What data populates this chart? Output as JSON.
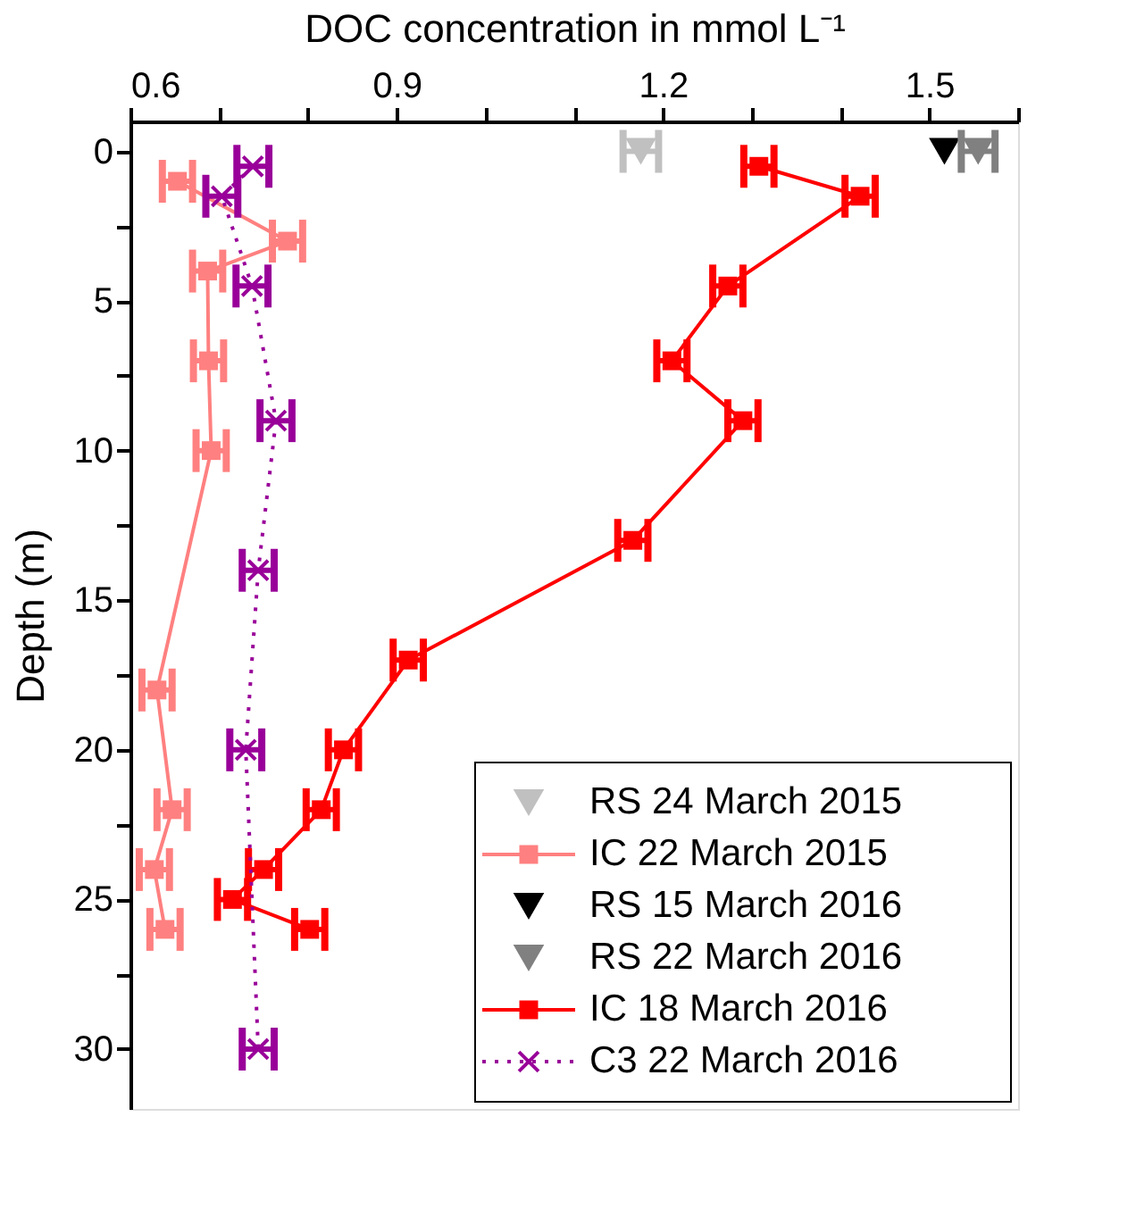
{
  "chart_data": {
    "type": "line",
    "xlabel": "DOC concentration in mmol L⁻¹",
    "ylabel": "Depth (m)",
    "xlim": [
      0.6,
      1.6
    ],
    "xticks": [
      0.6,
      {
        "value": 0.7,
        "label": null
      },
      {
        "value": 0.8,
        "label": null
      },
      0.9,
      {
        "value": 1.0,
        "label": null
      },
      {
        "value": 1.1,
        "label": null
      },
      1.2,
      {
        "value": 1.3,
        "label": null
      },
      {
        "value": 1.4,
        "label": null
      },
      1.5,
      {
        "value": 1.6,
        "label": null
      }
    ],
    "ylim": [
      32,
      -1
    ],
    "yticks": [
      0,
      {
        "value": 2.5,
        "label": null
      },
      5,
      {
        "value": 7.5,
        "label": null
      },
      10,
      {
        "value": 12.5,
        "label": null
      },
      15,
      {
        "value": 17.5,
        "label": null
      },
      20,
      {
        "value": 22.5,
        "label": null
      },
      25,
      {
        "value": 27.5,
        "label": null
      },
      30
    ],
    "grid": false,
    "legend": "bottom right",
    "series": [
      {
        "name": "RS 24 March 2015",
        "type": "scatter",
        "marker": "triangle",
        "color": "#c0c0c0",
        "x": [
          1.175
        ],
        "values": [
          0
        ],
        "xerrors": [
          0.02
        ]
      },
      {
        "name": "IC 22 March 2015",
        "marker": "square",
        "line_style": "solid",
        "color": "#ff8080",
        "x": [
          0.653,
          0.777,
          0.687,
          0.688,
          0.691,
          0.63,
          0.647,
          0.627,
          0.639
        ],
        "values": [
          1,
          3,
          4,
          7,
          10,
          18,
          22,
          24,
          26
        ],
        "xerrors": [
          0.017,
          0.017,
          0.017,
          0.017,
          0.017,
          0.017,
          0.017,
          0.017,
          0.017
        ]
      },
      {
        "name": "RS 15 March 2016",
        "type": "scatter",
        "marker": "triangle",
        "color": "#000000",
        "x": [
          1.517
        ],
        "values": [
          0
        ]
      },
      {
        "name": "RS 22 March 2016",
        "type": "scatter",
        "marker": "triangle",
        "color": "#808080",
        "x": [
          1.555
        ],
        "values": [
          0
        ],
        "xerrors": [
          0.019
        ]
      },
      {
        "name": "IC 18 March 2016",
        "marker": "square",
        "line_style": "solid",
        "color": "#ff0000",
        "x": [
          1.308,
          1.422,
          1.273,
          1.21,
          1.29,
          1.166,
          0.913,
          0.84,
          0.815,
          0.75,
          0.715,
          0.802
        ],
        "values": [
          0.5,
          1.5,
          4.5,
          7,
          9,
          13,
          17,
          20,
          22,
          24,
          25,
          26
        ],
        "xerrors": [
          0.017,
          0.017,
          0.017,
          0.017,
          0.017,
          0.017,
          0.017,
          0.017,
          0.017,
          0.017,
          0.017,
          0.017
        ]
      },
      {
        "name": "C3 22 March 2016",
        "marker": "cross",
        "line_style": "dotted",
        "color": "#990099",
        "x": [
          0.738,
          0.703,
          0.737,
          0.764,
          0.744,
          0.73,
          0.744
        ],
        "values": [
          0.5,
          1.5,
          4.5,
          9,
          14,
          20,
          30
        ],
        "xerrors": [
          0.018,
          0.018,
          0.018,
          0.018,
          0.018,
          0.018,
          0.018
        ]
      }
    ]
  }
}
